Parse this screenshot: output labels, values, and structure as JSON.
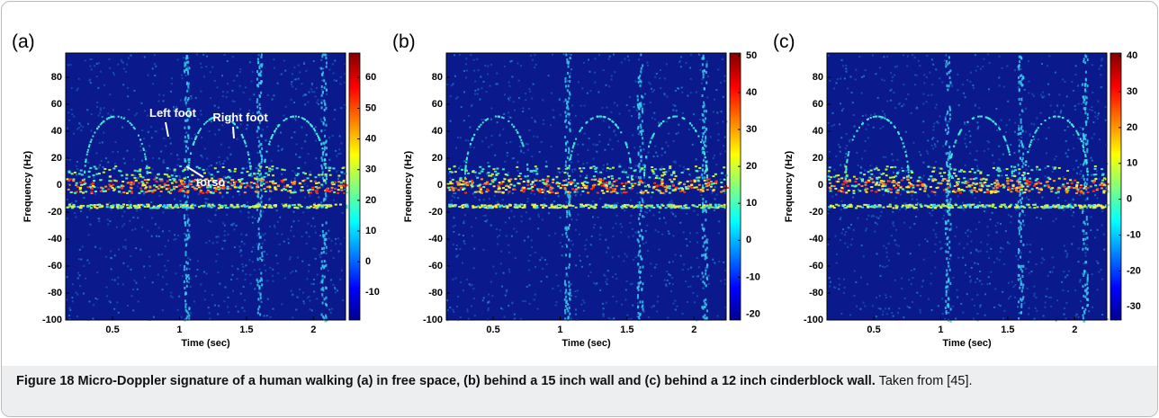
{
  "panels": [
    {
      "label": "(a)",
      "xlabel": "Time (sec)",
      "ylabel": "Frequency (Hz)",
      "xlim": [
        0.15,
        2.24
      ],
      "ylim": [
        -100,
        98
      ],
      "xticks": [
        0.5,
        1,
        1.5,
        2
      ],
      "yticks": [
        -100,
        -80,
        -60,
        -40,
        -20,
        0,
        20,
        40,
        60,
        80
      ],
      "clim": [
        -19,
        68
      ],
      "cticks": [
        -10,
        0,
        10,
        20,
        30,
        40,
        50,
        60
      ],
      "annotations": [
        "Left foot",
        "Right foot",
        "torso"
      ]
    },
    {
      "label": "(b)",
      "xlabel": "Time (sec)",
      "ylabel": "Frequency (Hz)",
      "xlim": [
        0.15,
        2.24
      ],
      "ylim": [
        -100,
        98
      ],
      "xticks": [
        0.5,
        1,
        1.5,
        2
      ],
      "yticks": [
        -100,
        -80,
        -60,
        -40,
        -20,
        0,
        20,
        40,
        60,
        80
      ],
      "clim": [
        -21.6,
        50.7
      ],
      "cticks": [
        -20,
        -10,
        0,
        10,
        20,
        30,
        40,
        50
      ]
    },
    {
      "label": "(c)",
      "xlabel": "Time (sec)",
      "ylabel": "Frequency (Hz)",
      "xlim": [
        0.15,
        2.24
      ],
      "ylim": [
        -100,
        98
      ],
      "xticks": [
        0.5,
        1,
        1.5,
        2
      ],
      "yticks": [
        -100,
        -80,
        -60,
        -40,
        -20,
        0,
        20,
        40,
        60,
        80
      ],
      "clim": [
        -33.7,
        40.8
      ],
      "cticks": [
        -30,
        -20,
        -10,
        0,
        10,
        20,
        30,
        40
      ]
    }
  ],
  "caption": {
    "label": "Figure 18",
    "title": "Micro-Doppler signature of a human walking (a) in free space, (b) behind a 15 inch wall and (c) behind a 12 inch cinderblock wall.",
    "note": "Taken from [45]."
  }
}
